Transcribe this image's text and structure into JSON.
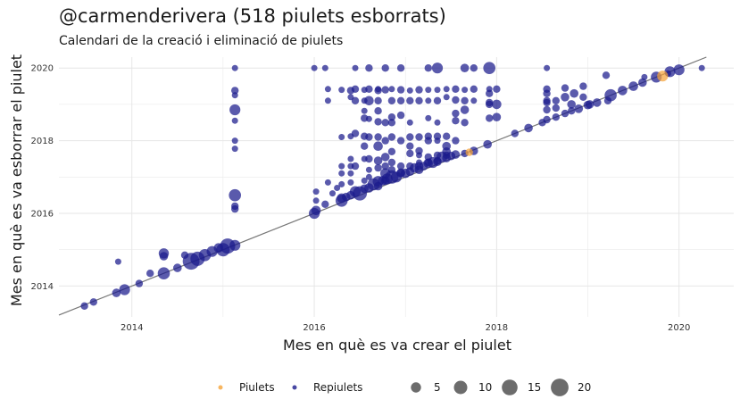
{
  "title": "@carmenderivera (518 piulets esborrats)",
  "subtitle": "Calendari de la creació i eliminació de piulets",
  "colors": {
    "piulets": "#f5a43a",
    "repiulets": "#1a1a8c",
    "diagonal": "#777777",
    "grid": "#e6e6e6"
  },
  "chart_data": {
    "type": "scatter",
    "xlabel": "Mes en què es va crear el piulet",
    "ylabel": "Mes en què es va esborrar el piulet",
    "xlim": [
      2013.2,
      2020.6
    ],
    "ylim": [
      2013.15,
      2020.3
    ],
    "x_ticks": [
      2014,
      2016,
      2018,
      2020
    ],
    "y_ticks": [
      2014,
      2016,
      2018,
      2020
    ],
    "grid": true,
    "diagonal": "y = x",
    "legend_position": "bottom",
    "legend": {
      "color_entries": [
        "Piulets",
        "Repiulets"
      ],
      "size_entries": [
        5,
        10,
        15,
        20
      ]
    },
    "series": [
      {
        "name": "Repiulets",
        "points": [
          [
            2013.48,
            2013.45,
            2
          ],
          [
            2013.58,
            2013.56,
            2
          ],
          [
            2013.83,
            2013.81,
            3
          ],
          [
            2013.92,
            2013.9,
            6
          ],
          [
            2014.08,
            2014.07,
            2
          ],
          [
            2013.85,
            2014.67,
            1
          ],
          [
            2014.2,
            2014.35,
            2
          ],
          [
            2014.35,
            2014.35,
            8
          ],
          [
            2014.35,
            2014.82,
            3
          ],
          [
            2014.35,
            2014.9,
            5
          ],
          [
            2014.5,
            2014.5,
            3
          ],
          [
            2014.58,
            2014.85,
            2
          ],
          [
            2014.65,
            2014.68,
            18
          ],
          [
            2014.72,
            2014.75,
            12
          ],
          [
            2014.8,
            2014.85,
            8
          ],
          [
            2014.88,
            2014.95,
            6
          ],
          [
            2014.95,
            2015.05,
            4
          ],
          [
            2015.0,
            2015.0,
            10
          ],
          [
            2015.05,
            2015.1,
            14
          ],
          [
            2015.13,
            2015.12,
            6
          ],
          [
            2015.13,
            2016.12,
            2
          ],
          [
            2015.13,
            2016.2,
            2
          ],
          [
            2015.13,
            2016.5,
            8
          ],
          [
            2015.13,
            2017.78,
            1
          ],
          [
            2015.13,
            2018.0,
            1
          ],
          [
            2015.13,
            2018.55,
            1
          ],
          [
            2015.13,
            2018.85,
            6
          ],
          [
            2015.13,
            2019.25,
            1
          ],
          [
            2015.13,
            2019.38,
            2
          ],
          [
            2015.13,
            2020.0,
            1
          ],
          [
            2016.0,
            2016.0,
            6
          ],
          [
            2016.02,
            2016.08,
            4
          ],
          [
            2016.02,
            2016.6,
            1
          ],
          [
            2016.02,
            2016.35,
            1
          ],
          [
            2016.0,
            2020.0,
            1
          ],
          [
            2016.12,
            2016.25,
            2
          ],
          [
            2016.15,
            2016.85,
            1
          ],
          [
            2016.12,
            2020.0,
            1
          ],
          [
            2016.15,
            2019.1,
            1
          ],
          [
            2016.15,
            2019.42,
            1
          ],
          [
            2016.2,
            2016.55,
            1
          ],
          [
            2016.25,
            2016.7,
            1
          ],
          [
            2016.3,
            2016.35,
            8
          ],
          [
            2016.35,
            2016.45,
            3
          ],
          [
            2016.3,
            2016.42,
            4
          ],
          [
            2016.4,
            2016.5,
            3
          ],
          [
            2016.45,
            2016.6,
            6
          ],
          [
            2016.5,
            2016.55,
            12
          ],
          [
            2016.55,
            2016.68,
            3
          ],
          [
            2016.6,
            2016.7,
            4
          ],
          [
            2016.65,
            2016.8,
            8
          ],
          [
            2016.7,
            2016.88,
            6
          ],
          [
            2016.75,
            2016.9,
            4
          ],
          [
            2016.8,
            2016.95,
            6
          ],
          [
            2016.85,
            2017.0,
            10
          ],
          [
            2016.9,
            2017.0,
            6
          ],
          [
            2016.95,
            2017.12,
            3
          ],
          [
            2017.0,
            2017.1,
            4
          ],
          [
            2017.05,
            2017.15,
            3
          ],
          [
            2017.1,
            2017.25,
            4
          ],
          [
            2017.15,
            2017.3,
            3
          ],
          [
            2017.2,
            2017.3,
            3
          ],
          [
            2017.25,
            2017.38,
            4
          ],
          [
            2017.3,
            2017.4,
            6
          ],
          [
            2017.35,
            2017.42,
            3
          ],
          [
            2017.4,
            2017.55,
            6
          ],
          [
            2017.45,
            2017.52,
            3
          ],
          [
            2017.5,
            2017.58,
            3
          ],
          [
            2017.55,
            2017.62,
            3
          ],
          [
            2017.75,
            2017.72,
            3
          ],
          [
            2016.3,
            2016.8,
            1
          ],
          [
            2016.3,
            2017.1,
            1
          ],
          [
            2016.3,
            2017.3,
            1
          ],
          [
            2016.3,
            2018.1,
            1
          ],
          [
            2016.3,
            2019.4,
            1
          ],
          [
            2016.4,
            2016.85,
            1
          ],
          [
            2016.4,
            2017.1,
            1
          ],
          [
            2016.4,
            2017.3,
            1
          ],
          [
            2016.4,
            2017.5,
            1
          ],
          [
            2016.4,
            2018.12,
            1
          ],
          [
            2016.4,
            2019.2,
            1
          ],
          [
            2016.4,
            2019.38,
            2
          ],
          [
            2016.45,
            2017.3,
            2
          ],
          [
            2016.45,
            2018.2,
            2
          ],
          [
            2016.45,
            2019.1,
            2
          ],
          [
            2016.45,
            2019.42,
            2
          ],
          [
            2016.45,
            2020.0,
            1
          ],
          [
            2016.55,
            2016.9,
            1
          ],
          [
            2016.55,
            2017.5,
            1
          ],
          [
            2016.55,
            2017.85,
            2
          ],
          [
            2016.55,
            2018.12,
            2
          ],
          [
            2016.55,
            2018.62,
            2
          ],
          [
            2016.55,
            2018.82,
            1
          ],
          [
            2016.55,
            2019.4,
            1
          ],
          [
            2016.55,
            2019.1,
            1
          ],
          [
            2016.6,
            2017.0,
            1
          ],
          [
            2016.6,
            2017.2,
            1
          ],
          [
            2016.6,
            2017.5,
            2
          ],
          [
            2016.6,
            2018.1,
            2
          ],
          [
            2016.6,
            2018.6,
            1
          ],
          [
            2016.6,
            2019.1,
            4
          ],
          [
            2016.6,
            2019.42,
            2
          ],
          [
            2016.6,
            2020.0,
            2
          ],
          [
            2016.7,
            2016.75,
            3
          ],
          [
            2016.7,
            2017.25,
            2
          ],
          [
            2016.7,
            2017.45,
            3
          ],
          [
            2016.7,
            2017.85,
            4
          ],
          [
            2016.7,
            2018.1,
            2
          ],
          [
            2016.7,
            2018.52,
            2
          ],
          [
            2016.7,
            2018.82,
            2
          ],
          [
            2016.7,
            2019.1,
            2
          ],
          [
            2016.7,
            2019.38,
            2
          ],
          [
            2016.7,
            2019.42,
            1
          ],
          [
            2016.78,
            2016.9,
            3
          ],
          [
            2016.78,
            2017.1,
            5
          ],
          [
            2016.78,
            2017.3,
            2
          ],
          [
            2016.78,
            2017.55,
            3
          ],
          [
            2016.78,
            2018.0,
            2
          ],
          [
            2016.78,
            2018.5,
            2
          ],
          [
            2016.78,
            2019.4,
            2
          ],
          [
            2016.78,
            2020.0,
            2
          ],
          [
            2016.85,
            2017.2,
            2
          ],
          [
            2016.85,
            2017.4,
            2
          ],
          [
            2016.85,
            2017.7,
            2
          ],
          [
            2016.85,
            2018.1,
            2
          ],
          [
            2016.85,
            2018.5,
            2
          ],
          [
            2016.85,
            2018.65,
            2
          ],
          [
            2016.85,
            2019.1,
            2
          ],
          [
            2016.85,
            2019.42,
            1
          ],
          [
            2016.95,
            2017.1,
            3
          ],
          [
            2016.95,
            2017.3,
            2
          ],
          [
            2016.95,
            2018.0,
            2
          ],
          [
            2016.95,
            2018.7,
            2
          ],
          [
            2016.95,
            2019.1,
            2
          ],
          [
            2016.95,
            2019.4,
            2
          ],
          [
            2016.95,
            2020.0,
            2
          ],
          [
            2017.05,
            2017.3,
            2
          ],
          [
            2017.05,
            2017.65,
            2
          ],
          [
            2017.05,
            2017.85,
            2
          ],
          [
            2017.05,
            2018.1,
            2
          ],
          [
            2017.05,
            2018.5,
            1
          ],
          [
            2017.05,
            2019.1,
            2
          ],
          [
            2017.05,
            2019.38,
            1
          ],
          [
            2017.15,
            2017.2,
            3
          ],
          [
            2017.15,
            2017.4,
            1
          ],
          [
            2017.15,
            2017.6,
            1
          ],
          [
            2017.15,
            2017.72,
            2
          ],
          [
            2017.15,
            2018.1,
            2
          ],
          [
            2017.15,
            2019.1,
            2
          ],
          [
            2017.15,
            2019.4,
            2
          ],
          [
            2017.25,
            2017.4,
            2
          ],
          [
            2017.25,
            2017.55,
            2
          ],
          [
            2017.25,
            2018.0,
            2
          ],
          [
            2017.25,
            2018.12,
            2
          ],
          [
            2017.25,
            2018.62,
            1
          ],
          [
            2017.25,
            2019.1,
            1
          ],
          [
            2017.25,
            2019.4,
            1
          ],
          [
            2017.25,
            2020.0,
            2
          ],
          [
            2017.35,
            2017.45,
            2
          ],
          [
            2017.35,
            2017.6,
            2
          ],
          [
            2017.35,
            2018.0,
            1
          ],
          [
            2017.35,
            2018.12,
            2
          ],
          [
            2017.35,
            2018.5,
            1
          ],
          [
            2017.35,
            2019.1,
            2
          ],
          [
            2017.35,
            2019.4,
            1
          ],
          [
            2017.35,
            2020.0,
            6
          ],
          [
            2017.45,
            2017.6,
            2
          ],
          [
            2017.45,
            2017.7,
            3
          ],
          [
            2017.45,
            2017.85,
            3
          ],
          [
            2017.45,
            2018.12,
            2
          ],
          [
            2017.45,
            2019.2,
            1
          ],
          [
            2017.45,
            2019.42,
            1
          ],
          [
            2017.55,
            2018.0,
            2
          ],
          [
            2017.55,
            2018.55,
            2
          ],
          [
            2017.55,
            2018.75,
            2
          ],
          [
            2017.55,
            2019.12,
            2
          ],
          [
            2017.55,
            2019.42,
            2
          ],
          [
            2017.65,
            2017.65,
            2
          ],
          [
            2017.65,
            2018.5,
            2
          ],
          [
            2017.65,
            2018.85,
            3
          ],
          [
            2017.65,
            2019.4,
            1
          ],
          [
            2017.65,
            2019.1,
            2
          ],
          [
            2017.65,
            2020.0,
            3
          ],
          [
            2017.75,
            2019.42,
            2
          ],
          [
            2017.75,
            2019.1,
            1
          ],
          [
            2017.75,
            2020.0,
            2
          ],
          [
            2017.9,
            2017.9,
            3
          ],
          [
            2017.92,
            2018.62,
            2
          ],
          [
            2017.92,
            2019.0,
            2
          ],
          [
            2017.92,
            2019.3,
            2
          ],
          [
            2017.92,
            2019.42,
            1
          ],
          [
            2017.92,
            2019.05,
            2
          ],
          [
            2018.0,
            2018.65,
            3
          ],
          [
            2018.0,
            2019.0,
            4
          ],
          [
            2018.0,
            2019.42,
            2
          ],
          [
            2017.92,
            2020.0,
            8
          ],
          [
            2018.2,
            2018.2,
            2
          ],
          [
            2018.35,
            2018.35,
            3
          ],
          [
            2018.5,
            2018.5,
            2
          ],
          [
            2018.55,
            2018.58,
            2
          ],
          [
            2018.55,
            2018.85,
            2
          ],
          [
            2018.55,
            2019.05,
            2
          ],
          [
            2018.55,
            2019.1,
            2
          ],
          [
            2018.55,
            2019.3,
            2
          ],
          [
            2018.55,
            2019.42,
            2
          ],
          [
            2018.55,
            2020.0,
            1
          ],
          [
            2018.65,
            2018.65,
            2
          ],
          [
            2018.65,
            2018.9,
            2
          ],
          [
            2018.65,
            2019.1,
            2
          ],
          [
            2018.75,
            2018.75,
            2
          ],
          [
            2018.75,
            2019.2,
            3
          ],
          [
            2018.75,
            2019.45,
            2
          ],
          [
            2018.82,
            2018.82,
            2
          ],
          [
            2018.82,
            2019.0,
            3
          ],
          [
            2018.85,
            2019.3,
            3
          ],
          [
            2018.9,
            2018.88,
            3
          ],
          [
            2018.95,
            2019.5,
            2
          ],
          [
            2018.95,
            2019.2,
            2
          ],
          [
            2019.0,
            2018.98,
            3
          ],
          [
            2019.02,
            2019.0,
            3
          ],
          [
            2019.1,
            2019.05,
            3
          ],
          [
            2019.25,
            2019.25,
            8
          ],
          [
            2019.22,
            2019.1,
            2
          ],
          [
            2019.38,
            2019.38,
            4
          ],
          [
            2019.5,
            2019.5,
            4
          ],
          [
            2019.6,
            2019.6,
            3
          ],
          [
            2019.75,
            2019.75,
            6
          ],
          [
            2019.9,
            2019.9,
            6
          ],
          [
            2020.0,
            2019.95,
            6
          ],
          [
            2020.25,
            2020.0,
            1
          ],
          [
            2019.2,
            2019.8,
            2
          ],
          [
            2019.62,
            2019.75,
            1
          ],
          [
            2019.88,
            2019.85,
            1
          ]
        ]
      },
      {
        "name": "Piulets",
        "points": [
          [
            2019.82,
            2019.78,
            6
          ],
          [
            2017.7,
            2017.68,
            2
          ]
        ]
      }
    ]
  }
}
